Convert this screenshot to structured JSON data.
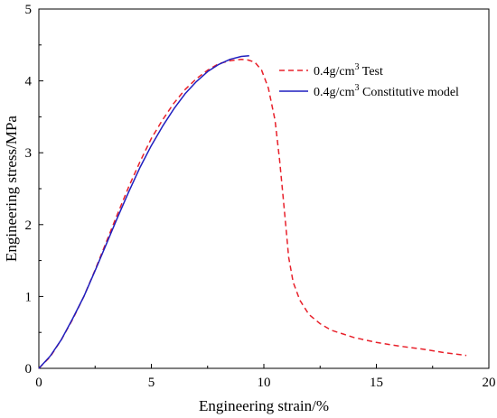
{
  "chart_data": {
    "type": "line",
    "title": "",
    "xlabel": "Engineering strain/%",
    "ylabel": "Engineering stress/MPa",
    "xlim": [
      0,
      20
    ],
    "ylim": [
      0,
      5
    ],
    "xticks": [
      0,
      5,
      10,
      15,
      20
    ],
    "yticks": [
      0,
      1,
      2,
      3,
      4,
      5
    ],
    "grid": false,
    "legend_position": "top-right",
    "series": [
      {
        "name_base": "0.4g/cm",
        "name_sup": "3",
        "name_suffix": " Test",
        "color": "#e8202a",
        "style": "dashed",
        "x": [
          0,
          0.5,
          1,
          1.5,
          2,
          2.5,
          3,
          3.5,
          4,
          4.5,
          5,
          5.5,
          6,
          6.5,
          7,
          7.5,
          8,
          8.5,
          9,
          9.3,
          9.6,
          9.9,
          10.2,
          10.5,
          10.7,
          10.85,
          11.0,
          11.1,
          11.3,
          11.6,
          12,
          12.5,
          13,
          14,
          15,
          16,
          17,
          18,
          19
        ],
        "y": [
          0,
          0.16,
          0.4,
          0.68,
          1.0,
          1.37,
          1.76,
          2.15,
          2.53,
          2.88,
          3.2,
          3.46,
          3.69,
          3.88,
          4.03,
          4.15,
          4.24,
          4.28,
          4.3,
          4.29,
          4.26,
          4.15,
          3.9,
          3.45,
          2.9,
          2.4,
          1.9,
          1.55,
          1.2,
          0.95,
          0.75,
          0.62,
          0.53,
          0.43,
          0.36,
          0.31,
          0.27,
          0.22,
          0.18
        ]
      },
      {
        "name_base": "0.4g/cm",
        "name_sup": "3",
        "name_suffix": " Constitutive model",
        "color": "#1f1fbf",
        "style": "solid",
        "x": [
          0,
          0.5,
          1,
          1.5,
          2,
          2.5,
          3,
          3.5,
          4,
          4.5,
          5,
          5.5,
          6,
          6.5,
          7,
          7.5,
          8,
          8.5,
          9,
          9.35
        ],
        "y": [
          0,
          0.17,
          0.4,
          0.69,
          1.0,
          1.36,
          1.73,
          2.1,
          2.46,
          2.8,
          3.1,
          3.37,
          3.61,
          3.82,
          3.99,
          4.13,
          4.23,
          4.3,
          4.34,
          4.35
        ]
      }
    ]
  }
}
